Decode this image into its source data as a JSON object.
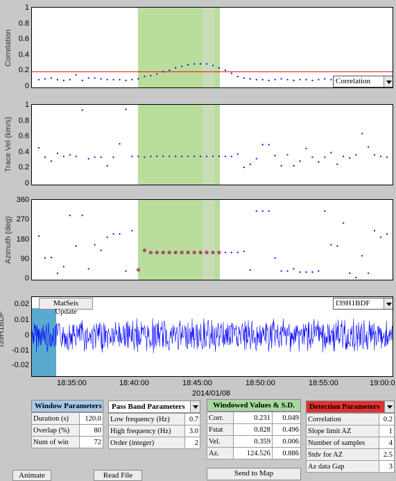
{
  "colors": {
    "highlight": "#b9dd9b",
    "highlight_dark": "#d2dccb",
    "dots": "#0000ff",
    "ref_line": "#ff0000",
    "signal": "#0000ff",
    "amp_marker": "#5aaad0",
    "window_hdr": "#a8c8e8",
    "windowed_hdr": "#a8d8a0",
    "detection_hdr": "#e03030"
  },
  "x_axis": {
    "ticks": [
      "18:35:00",
      "18:40:00",
      "18:45:00",
      "18:50:00",
      "18:55:00",
      "19:00:0"
    ],
    "date": "2014/01/08"
  },
  "corr_plot": {
    "ylabel": "Correlation",
    "yticks": [
      "1",
      "0.8",
      "0.6",
      "0.4",
      "0.2",
      "0"
    ],
    "ref": 0.2,
    "dropdown": "Correlation",
    "values": [
      0.1,
      0.11,
      0.12,
      0.1,
      0.09,
      0.1,
      0.16,
      0.09,
      0.12,
      0.12,
      0.11,
      0.1,
      0.1,
      0.1,
      0.09,
      0.1,
      0.11,
      0.14,
      0.15,
      0.17,
      0.2,
      0.22,
      0.25,
      0.27,
      0.29,
      0.3,
      0.3,
      0.3,
      0.28,
      0.25,
      0.22,
      0.18,
      0.14,
      0.12,
      0.11,
      0.1,
      0.1,
      0.09,
      0.1,
      0.11,
      0.1,
      0.09,
      0.1,
      0.1,
      0.09,
      0.1,
      0.11,
      0.1,
      0.09,
      0.1,
      0.1,
      0.11,
      0.12,
      0.1,
      0.1,
      0.1,
      0.1
    ]
  },
  "vel_plot": {
    "ylabel": "Trace Vel (km/s)",
    "yticks": [
      "1",
      "0.8",
      "0.6",
      "0.4",
      "0.2",
      "0"
    ],
    "values": [
      0.47,
      0.35,
      0.3,
      0.4,
      0.36,
      0.38,
      0.36,
      0.95,
      0.33,
      0.35,
      0.35,
      0.24,
      0.35,
      0.52,
      0.96,
      0.36,
      0.36,
      0.35,
      0.36,
      0.36,
      0.36,
      0.36,
      0.36,
      0.36,
      0.36,
      0.36,
      0.36,
      0.36,
      0.36,
      0.36,
      0.36,
      0.36,
      0.39,
      0.22,
      0.26,
      0.33,
      0.51,
      0.51,
      0.37,
      0.24,
      0.38,
      0.24,
      0.3,
      0.46,
      0.35,
      0.29,
      0.35,
      0.41,
      0.26,
      0.36,
      0.34,
      0.38,
      0.65,
      0.48,
      0.38,
      0.36,
      0.35
    ]
  },
  "az_plot": {
    "ylabel": "Azimuth (deg)",
    "yticks": [
      "360",
      "270",
      "180",
      "90",
      "0"
    ],
    "values": [
      200,
      100,
      102,
      30,
      60,
      295,
      155,
      295,
      50,
      160,
      135,
      195,
      210,
      210,
      40,
      225,
      45,
      135,
      125,
      125,
      125,
      125,
      125,
      125,
      125,
      125,
      125,
      125,
      125,
      125,
      125,
      125,
      125,
      130,
      45,
      315,
      315,
      315,
      100,
      40,
      40,
      50,
      35,
      35,
      35,
      40,
      315,
      160,
      155,
      260,
      30,
      10,
      110,
      30,
      225,
      195,
      210
    ]
  },
  "seis_plot": {
    "ylabel": "I39H1BDF",
    "yticks": [
      "0.02",
      "0.01",
      "0",
      "-0.01",
      "-0.02"
    ],
    "update_button": "MatSeis Update",
    "station_select": "I39H1BDF"
  },
  "window_params": {
    "title": "Window Parameters",
    "rows": [
      {
        "label": "Duration (s)",
        "value": "120.0"
      },
      {
        "label": "Overlap (%)",
        "value": "80"
      },
      {
        "label": "Num of win",
        "value": "72"
      }
    ]
  },
  "passband_params": {
    "title": "Pass Band Parameters",
    "rows": [
      {
        "label": "Low frequency (Hz)",
        "value": "0.7"
      },
      {
        "label": "High frequency (Hz)",
        "value": "3.0"
      },
      {
        "label": "Order (integer)",
        "value": "2"
      }
    ]
  },
  "windowed_values": {
    "title": "Windowed Values & S.D.",
    "rows": [
      {
        "label": "Corr.",
        "v": "0.231",
        "sd": "0.049"
      },
      {
        "label": "Fstat",
        "v": "0.828",
        "sd": "0.496"
      },
      {
        "label": "Vel.",
        "v": "0.359",
        "sd": "0.006"
      },
      {
        "label": "Az.",
        "v": "124.526",
        "sd": "0.886"
      }
    ],
    "button": "Send to Map"
  },
  "detection_params": {
    "title": "Detection Parameters",
    "rows": [
      {
        "label": "Correlation",
        "value": "0.2"
      },
      {
        "label": "Slope limit AZ",
        "value": "1"
      },
      {
        "label": "Number of samples",
        "value": "4"
      },
      {
        "label": "Stdv for AZ",
        "value": "2.5"
      },
      {
        "label": "Az data Gap",
        "value": "3"
      }
    ]
  },
  "buttons": {
    "animate": "Animate",
    "read_file": "Read File"
  }
}
